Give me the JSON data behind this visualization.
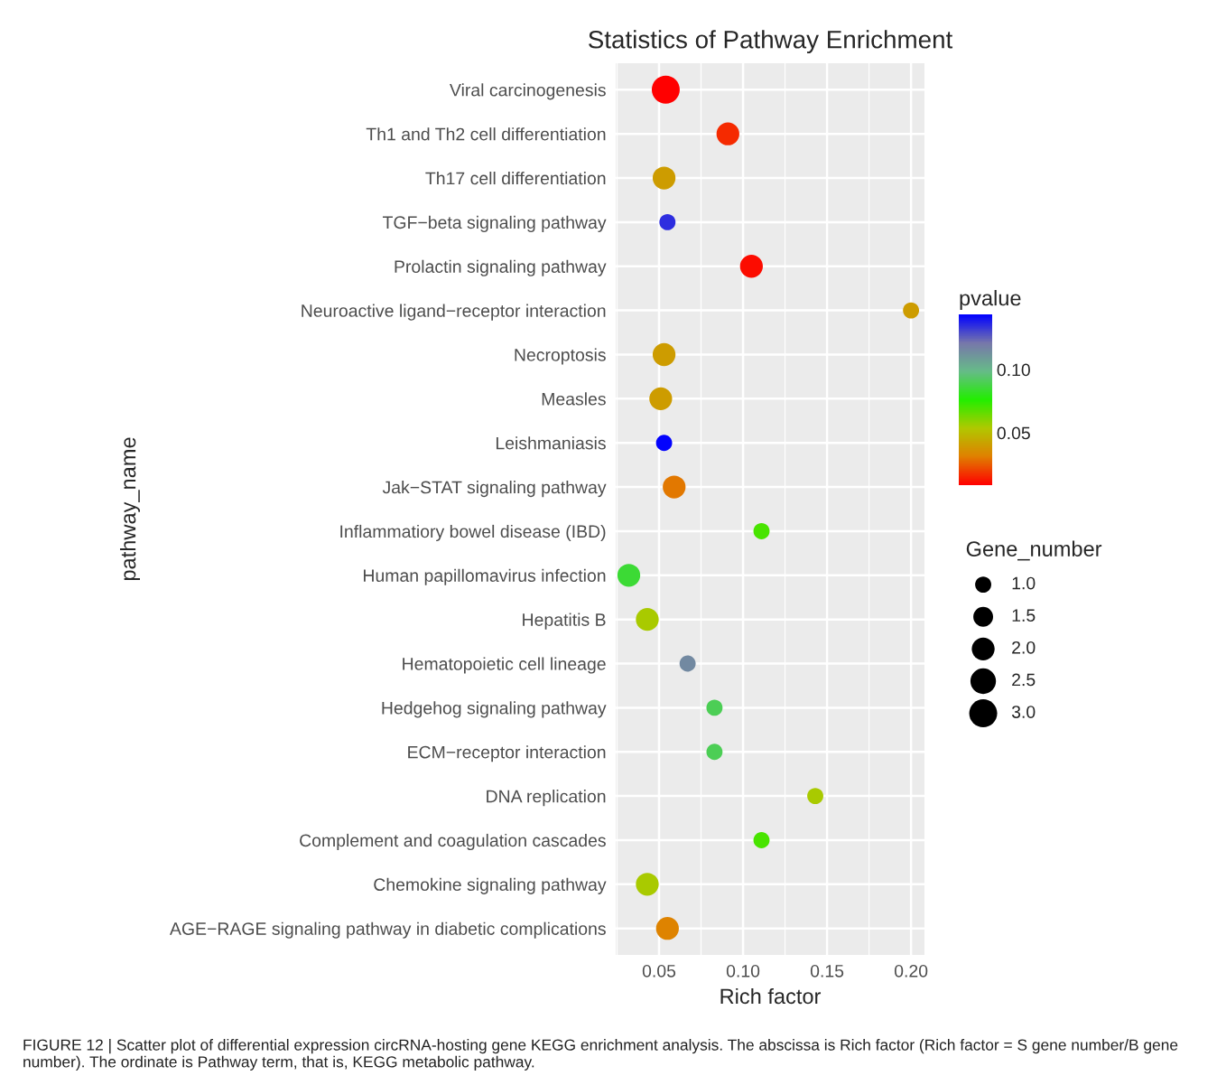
{
  "chart_data": {
    "type": "bubble",
    "title": "Statistics of Pathway Enrichment",
    "xlabel": "Rich factor",
    "ylabel": "pathway_name",
    "clabel": "pvalue",
    "legend_title": "Gene_number",
    "categories": [
      "Viral carcinogenesis",
      "Th1 and Th2 cell differentiation",
      "Th17 cell differentiation",
      "TGF−beta signaling pathway",
      "Prolactin signaling pathway",
      "Neuroactive ligand−receptor interaction",
      "Necroptosis",
      "Measles",
      "Leishmaniasis",
      "Jak−STAT signaling pathway",
      "Inflammatiory bowel disease (IBD)",
      "Human papillomavirus infection",
      "Hepatitis B",
      "Hematopoietic cell lineage",
      "Hedgehog signaling pathway",
      "ECM−receptor interaction",
      "DNA replication",
      "Complement and coagulation cascades",
      "Chemokine signaling pathway",
      "AGE−RAGE signaling pathway in diabetic complications"
    ],
    "values": [
      0.054,
      0.091,
      0.053,
      0.055,
      0.105,
      0.2,
      0.053,
      0.051,
      0.053,
      0.059,
      0.111,
      0.032,
      0.043,
      0.067,
      0.083,
      0.083,
      0.143,
      0.111,
      0.043,
      0.055
    ],
    "sizes": [
      3,
      2,
      2,
      1,
      2,
      1,
      2,
      2,
      1,
      2,
      1,
      2,
      2,
      1,
      1,
      1,
      1,
      1,
      2,
      2
    ],
    "cvalues": [
      0.009,
      0.016,
      0.04,
      0.135,
      0.011,
      0.04,
      0.04,
      0.04,
      0.143,
      0.03,
      0.07,
      0.085,
      0.055,
      0.115,
      0.09,
      0.09,
      0.055,
      0.07,
      0.055,
      0.032
    ],
    "size_legend": [
      {
        "value": 1.0,
        "label": "1.0"
      },
      {
        "value": 1.5,
        "label": "1.5"
      },
      {
        "value": 2.0,
        "label": "2.0"
      },
      {
        "value": 2.5,
        "label": "2.5"
      },
      {
        "value": 3.0,
        "label": "3.0"
      }
    ],
    "orientation": "horizontal",
    "clim": [
      0.0086,
      0.1436
    ],
    "cticks": [
      {
        "value": 0.05,
        "label": "0.05"
      },
      {
        "value": 0.1,
        "label": "0.10"
      }
    ],
    "xlim": [
      0.0242,
      0.208
    ],
    "xticks": [
      {
        "value": 0.05,
        "label": "0.05"
      },
      {
        "value": 0.1,
        "label": "0.10"
      },
      {
        "value": 0.15,
        "label": "0.15"
      },
      {
        "value": 0.2,
        "label": "0.20"
      }
    ],
    "grid": true,
    "annotations": [
      "FIGURE 12 | Scatter plot of differential expression circRNA-hosting gene KEGG enrichment analysis. The abscissa is Rich factor (Rich factor = S gene number/B gene number). The ordinate is Pathway term, that is, KEGG metabolic pathway."
    ]
  }
}
